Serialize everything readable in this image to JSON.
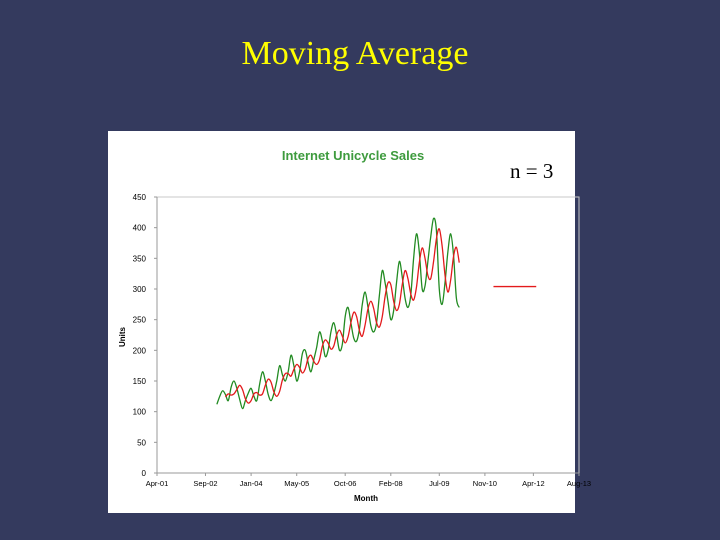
{
  "slide": {
    "title": "Moving Average",
    "annotation": "n = 3"
  },
  "colors": {
    "background": "#343a5e",
    "title": "#ffff00",
    "actual_series": "#228b22",
    "moving_average_series": "#e31a1c",
    "forecast_series": "#e31a1c"
  },
  "chart_data": {
    "type": "line",
    "title": "Internet Unicycle Sales",
    "xlabel": "Month",
    "ylabel": "Units",
    "ylim": [
      0,
      450
    ],
    "yticks": [
      "0",
      "50",
      "100",
      "150",
      "200",
      "250",
      "300",
      "350",
      "400",
      "450"
    ],
    "xlim": [
      "2001-04",
      "2013-08"
    ],
    "xticks": [
      {
        "date": "2001-04",
        "label": "Apr-01"
      },
      {
        "date": "2002-09",
        "label": "Sep-02"
      },
      {
        "date": "2004-01",
        "label": "Jan-04"
      },
      {
        "date": "2005-05",
        "label": "May-05"
      },
      {
        "date": "2006-10",
        "label": "Oct-06"
      },
      {
        "date": "2008-02",
        "label": "Feb-08"
      },
      {
        "date": "2009-07",
        "label": "Jul-09"
      },
      {
        "date": "2010-11",
        "label": "Nov-10"
      },
      {
        "date": "2012-04",
        "label": "Apr-12"
      },
      {
        "date": "2013-08",
        "label": "Aug-13"
      }
    ],
    "grid": false,
    "legend": "none",
    "series": [
      {
        "start": "2003-01",
        "values": [
          112,
          125,
          134,
          128,
          118,
          140,
          150,
          138,
          120,
          105,
          118,
          130,
          138,
          125,
          118,
          145,
          165,
          150,
          128,
          118,
          130,
          150,
          175,
          160,
          150,
          165,
          192,
          175,
          150,
          165,
          195,
          200,
          180,
          165,
          185,
          205,
          230,
          215,
          190,
          200,
          230,
          245,
          225,
          200,
          210,
          255,
          270,
          245,
          220,
          215,
          235,
          275,
          295,
          270,
          240,
          230,
          245,
          290,
          330,
          310,
          280,
          250,
          265,
          310,
          345,
          320,
          285,
          270,
          290,
          350,
          390,
          360,
          300,
          305,
          345,
          385,
          415,
          395,
          300,
          275,
          310,
          360,
          390,
          355,
          285,
          270
        ]
      },
      {
        "start": "2003-04",
        "values": [
          124,
          129,
          127,
          129,
          136,
          143,
          136,
          121,
          114,
          118,
          129,
          131,
          127,
          129,
          143,
          153,
          148,
          132,
          125,
          133,
          152,
          162,
          162,
          158,
          169,
          177,
          172,
          163,
          170,
          187,
          192,
          182,
          177,
          185,
          207,
          217,
          212,
          202,
          207,
          225,
          233,
          223,
          212,
          222,
          245,
          262,
          255,
          232,
          223,
          242,
          268,
          280,
          268,
          245,
          238,
          255,
          288,
          310,
          307,
          280,
          265,
          275,
          307,
          330,
          317,
          292,
          282,
          303,
          343,
          367,
          350,
          322,
          317,
          345,
          382,
          398,
          370,
          323,
          295,
          315,
          353,
          368,
          343
        ]
      },
      {
        "start": "2011-02",
        "values": [
          304,
          304,
          304,
          304,
          304,
          304,
          304,
          304,
          304,
          304,
          304,
          304,
          304,
          304,
          304,
          304
        ]
      }
    ]
  }
}
